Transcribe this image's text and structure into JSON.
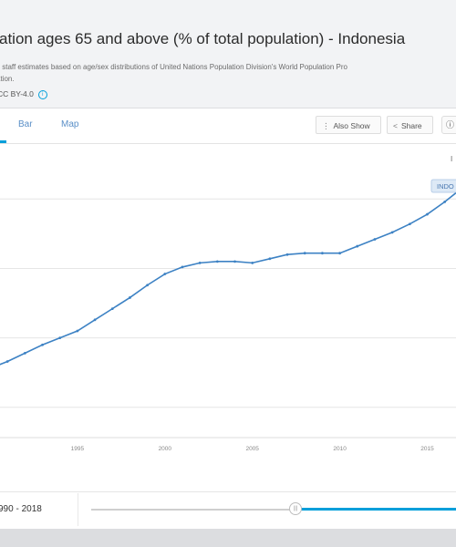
{
  "header": {
    "title": "ation ages 65 and above (% of total population) - Indonesia",
    "source_line1": "k staff estimates based on age/sex distributions of United Nations Population Division's World Population Pro",
    "source_line2": "ation.",
    "license": "CC BY-4.0",
    "info_icon": "info-icon"
  },
  "tabs": [
    {
      "label": "Bar",
      "active": false
    },
    {
      "label": "Map",
      "active": false
    }
  ],
  "toolbar": {
    "also_show_label": "Also Show",
    "also_show_icon": "vertical-dots-icon",
    "share_label": "Share",
    "share_icon": "share-icon",
    "info_icon": "info-icon"
  },
  "colors": {
    "accent": "#009fda",
    "line": "#3d82c4",
    "series_label_bg": "#dde9f6"
  },
  "chart_data": {
    "type": "line",
    "x": [
      1990,
      1991,
      1992,
      1993,
      1994,
      1995,
      1996,
      1997,
      1998,
      1999,
      2000,
      2001,
      2002,
      2003,
      2004,
      2005,
      2006,
      2007,
      2008,
      2009,
      2010,
      2011,
      2012,
      2013,
      2014,
      2015,
      2016,
      2017,
      2018
    ],
    "series": [
      {
        "name": "INDONESIA",
        "values": [
          3.78,
          3.83,
          3.89,
          3.95,
          4.0,
          4.05,
          4.13,
          4.21,
          4.29,
          4.38,
          4.46,
          4.51,
          4.54,
          4.55,
          4.55,
          4.54,
          4.57,
          4.6,
          4.61,
          4.61,
          4.61,
          4.66,
          4.71,
          4.76,
          4.82,
          4.89,
          4.98,
          5.08,
          5.18
        ]
      }
    ],
    "x_tick_labels": [
      "1995",
      "2000",
      "2005",
      "2010",
      "2015"
    ],
    "ylim": [
      3.3,
      5.35
    ],
    "grid": true,
    "series_label": "INDO",
    "legend_corner_glyph": "I"
  },
  "range": {
    "label": "990 - 2018",
    "start": 1990,
    "end": 2018,
    "handle_icon": "slider-handle-icon"
  }
}
